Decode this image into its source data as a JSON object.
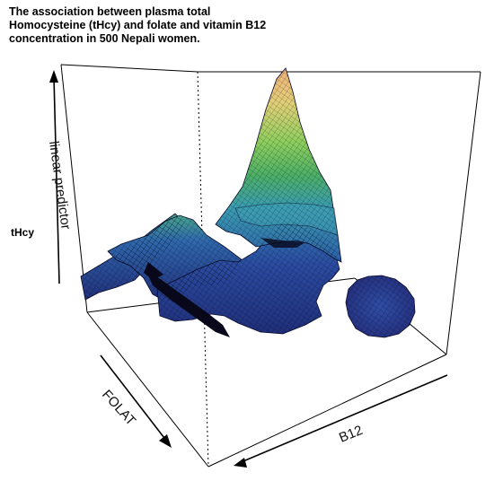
{
  "title": "The association between plasma total Homocysteine (tHcy) and folate and vitamin B12 concentration in 500 Nepali women.",
  "side_label": "tHcy",
  "chart_data": {
    "type": "surface-3d",
    "title": "The association between plasma total Homocysteine (tHcy) and folate and vitamin B12 concentration in 500 Nepali women.",
    "zlabel": "linear predictor",
    "xlabel": "FOLAT",
    "ylabel": "B12",
    "color_scale": [
      "#21205a",
      "#2a3f93",
      "#2e69b0",
      "#3a9cb2",
      "#5dbb5a",
      "#a4d36b",
      "#e6c97a",
      "#f0b17a"
    ],
    "grid": false,
    "ticks": "none",
    "peak_location": "high B12, low FOLAT (back-right)",
    "surface_features": [
      "sharp central peak",
      "secondary ridge at left",
      "separate circular patch at right",
      "dark trough in front-left"
    ]
  }
}
